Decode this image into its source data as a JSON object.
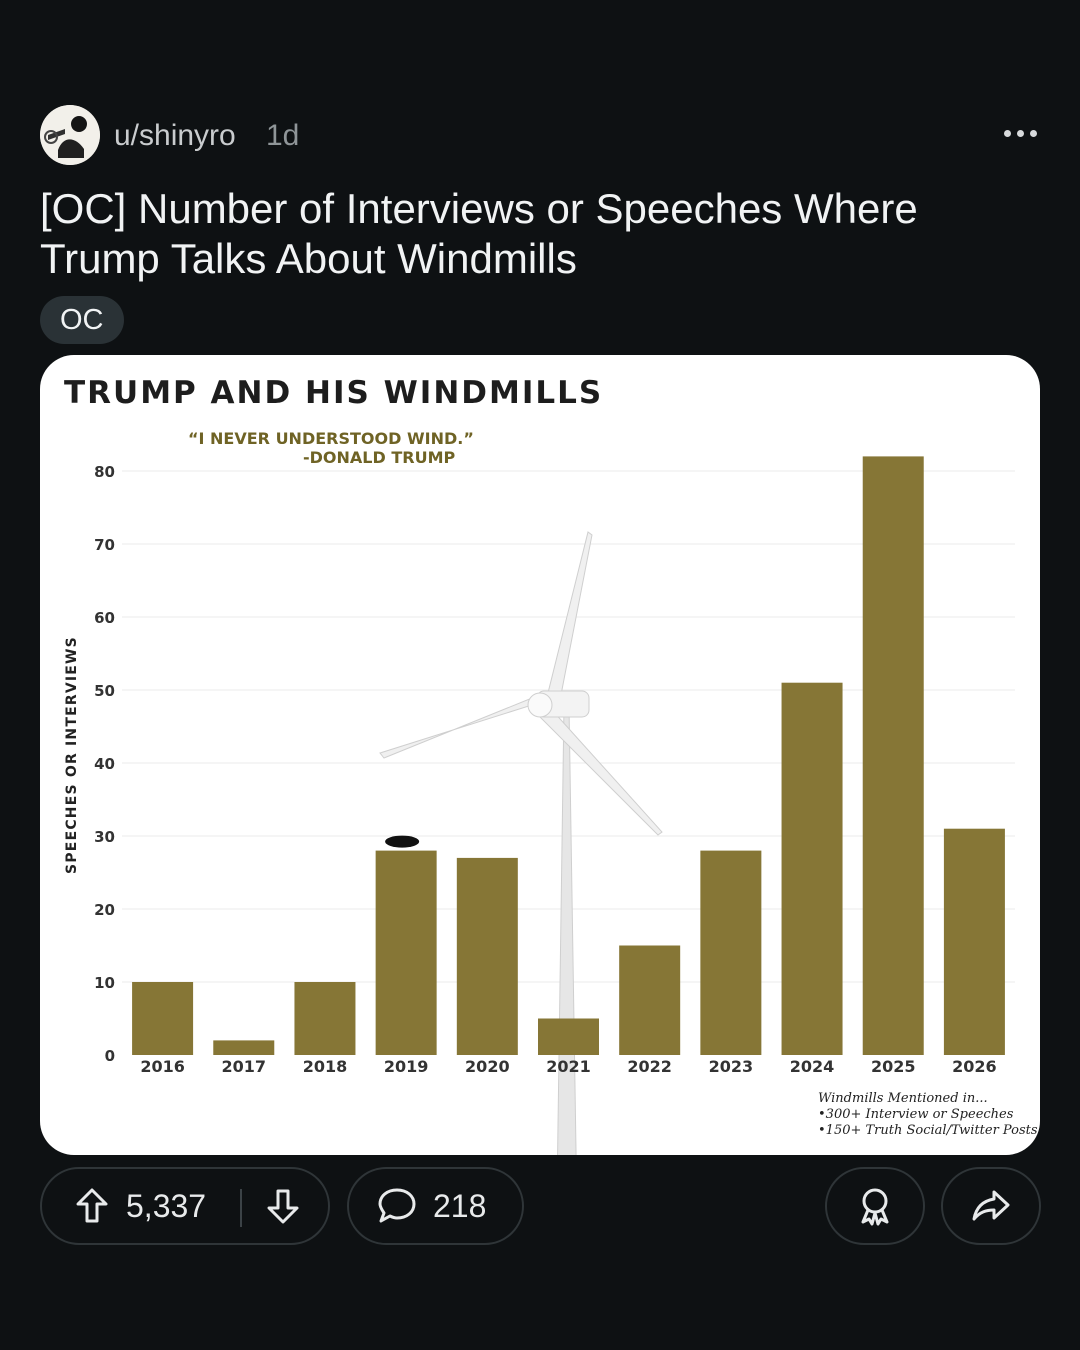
{
  "post": {
    "username": "u/shinyro",
    "age": "1d",
    "title": "[OC] Number of Interviews or Speeches Where Trump Talks About Windmills",
    "flair": "OC",
    "upvotes": "5,337",
    "comments": "218"
  },
  "chart_data": {
    "type": "bar",
    "title": "TRUMP AND HIS WINDMILLS",
    "quote": "“I NEVER UNDERSTOOD WIND.”",
    "quote_author": "-DONALD TRUMP",
    "ylabel": "SPEECHES OR INTERVIEWS",
    "xlabel": "",
    "categories": [
      "2016",
      "2017",
      "2018",
      "2019",
      "2020",
      "2021",
      "2022",
      "2023",
      "2024",
      "2025",
      "2026"
    ],
    "values": [
      10,
      2,
      10,
      28,
      27,
      5,
      15,
      28,
      51,
      82,
      31
    ],
    "ylim": [
      0,
      80
    ],
    "yticks": [
      0,
      10,
      20,
      30,
      40,
      50,
      60,
      70,
      80
    ],
    "bar_color": "#867636",
    "grid": true,
    "notes": [
      "Windmills Mentioned in...",
      "•300+ Interview or Speeches",
      "•150+ Truth Social/Twitter Posts"
    ]
  },
  "icons": {
    "upvote": "arrow-up-icon",
    "downvote": "arrow-down-icon",
    "comment": "comment-bubble-icon",
    "award": "award-icon",
    "share": "share-icon",
    "more": "more-dots-icon"
  },
  "colors": {
    "background": "#0e1113",
    "bar": "#867636",
    "title_text": "#1d1d1d",
    "quote_text": "#6f6325"
  }
}
